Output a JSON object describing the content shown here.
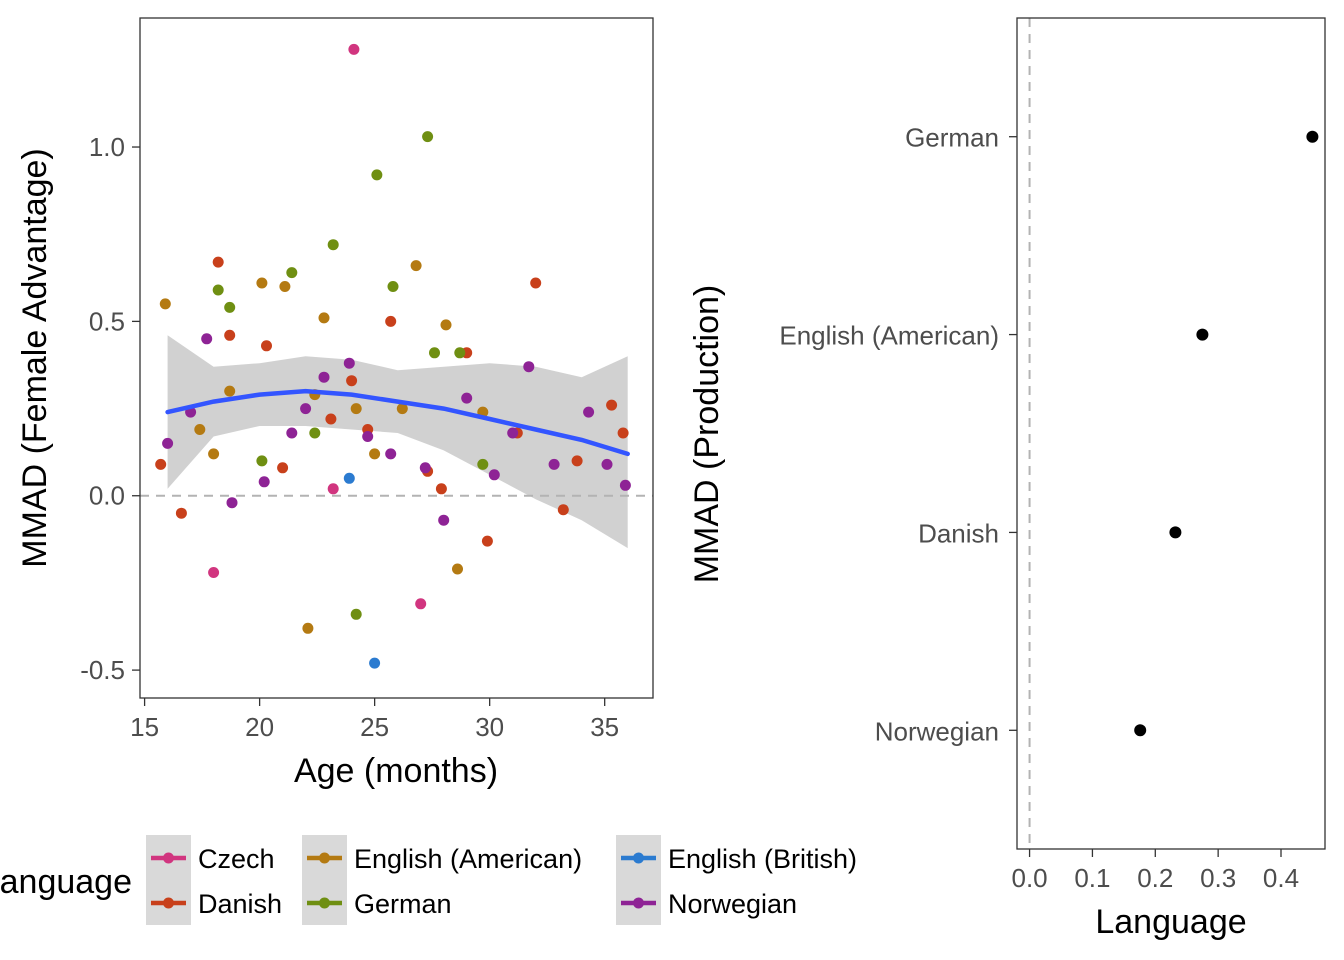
{
  "chart_data": [
    {
      "type": "scatter",
      "xlabel": "Age (months)",
      "ylabel": "MMAD (Female Advantage)",
      "xlim": [
        14.8,
        37.1
      ],
      "ylim": [
        -0.58,
        1.37
      ],
      "x_ticks": [
        15,
        20,
        25,
        30,
        35
      ],
      "y_ticks": [
        -0.5,
        0.0,
        0.5,
        1.0
      ],
      "reference_line": 0,
      "grid": false,
      "colors": {
        "Czech": "#d1357f",
        "Danish": "#c8401b",
        "English (American)": "#b47a12",
        "German": "#6f8f12",
        "English (British)": "#2b7bd0",
        "Norwegian": "#8e2395"
      },
      "series": [
        {
          "name": "Czech",
          "points": [
            [
              24.1,
              1.28
            ],
            [
              27.0,
              -0.31
            ],
            [
              18.0,
              -0.22
            ],
            [
              23.2,
              0.02
            ]
          ]
        },
        {
          "name": "Danish",
          "points": [
            [
              15.7,
              0.09
            ],
            [
              16.6,
              -0.05
            ],
            [
              18.2,
              0.67
            ],
            [
              18.7,
              0.46
            ],
            [
              20.3,
              0.43
            ],
            [
              21.0,
              0.08
            ],
            [
              23.1,
              0.22
            ],
            [
              24.0,
              0.33
            ],
            [
              24.7,
              0.19
            ],
            [
              25.7,
              0.5
            ],
            [
              27.3,
              0.07
            ],
            [
              27.9,
              0.02
            ],
            [
              29.0,
              0.41
            ],
            [
              29.9,
              -0.13
            ],
            [
              31.2,
              0.18
            ],
            [
              32.0,
              0.61
            ],
            [
              33.2,
              -0.04
            ],
            [
              33.8,
              0.1
            ],
            [
              35.3,
              0.26
            ],
            [
              35.8,
              0.18
            ]
          ]
        },
        {
          "name": "English (American)",
          "points": [
            [
              15.9,
              0.55
            ],
            [
              17.4,
              0.19
            ],
            [
              18.0,
              0.12
            ],
            [
              18.7,
              0.3
            ],
            [
              20.1,
              0.61
            ],
            [
              21.1,
              0.6
            ],
            [
              22.1,
              -0.38
            ],
            [
              22.4,
              0.29
            ],
            [
              22.8,
              0.51
            ],
            [
              24.2,
              0.25
            ],
            [
              25.0,
              0.12
            ],
            [
              26.2,
              0.25
            ],
            [
              26.8,
              0.66
            ],
            [
              28.1,
              0.49
            ],
            [
              28.6,
              -0.21
            ],
            [
              29.7,
              0.24
            ]
          ]
        },
        {
          "name": "German",
          "points": [
            [
              18.2,
              0.59
            ],
            [
              18.7,
              0.54
            ],
            [
              20.1,
              0.1
            ],
            [
              21.4,
              0.64
            ],
            [
              22.4,
              0.18
            ],
            [
              23.2,
              0.72
            ],
            [
              24.2,
              -0.34
            ],
            [
              25.1,
              0.92
            ],
            [
              25.8,
              0.6
            ],
            [
              27.3,
              1.03
            ],
            [
              27.6,
              0.41
            ],
            [
              28.7,
              0.41
            ],
            [
              29.7,
              0.09
            ]
          ]
        },
        {
          "name": "English (British)",
          "points": [
            [
              23.9,
              0.05
            ],
            [
              25.0,
              -0.48
            ]
          ]
        },
        {
          "name": "Norwegian",
          "points": [
            [
              16.0,
              0.15
            ],
            [
              17.0,
              0.24
            ],
            [
              17.7,
              0.45
            ],
            [
              18.8,
              -0.02
            ],
            [
              20.2,
              0.04
            ],
            [
              21.4,
              0.18
            ],
            [
              22.0,
              0.25
            ],
            [
              22.8,
              0.34
            ],
            [
              23.9,
              0.38
            ],
            [
              24.7,
              0.17
            ],
            [
              25.7,
              0.12
            ],
            [
              27.2,
              0.08
            ],
            [
              28.0,
              -0.07
            ],
            [
              29.0,
              0.28
            ],
            [
              30.2,
              0.06
            ],
            [
              31.0,
              0.18
            ],
            [
              31.7,
              0.37
            ],
            [
              32.8,
              0.09
            ],
            [
              34.3,
              0.24
            ],
            [
              35.1,
              0.09
            ],
            [
              35.9,
              0.03
            ]
          ]
        }
      ],
      "smooth": {
        "color": "#3355ff",
        "x": [
          16.0,
          18.0,
          20.0,
          22.0,
          24.0,
          26.0,
          28.0,
          30.0,
          32.0,
          34.0,
          36.0
        ],
        "y": [
          0.24,
          0.27,
          0.29,
          0.3,
          0.29,
          0.27,
          0.25,
          0.22,
          0.19,
          0.16,
          0.12
        ],
        "lower": [
          0.02,
          0.17,
          0.2,
          0.2,
          0.19,
          0.18,
          0.13,
          0.06,
          -0.01,
          -0.07,
          -0.15
        ],
        "upper": [
          0.46,
          0.37,
          0.38,
          0.4,
          0.39,
          0.36,
          0.37,
          0.38,
          0.37,
          0.34,
          0.4
        ]
      }
    },
    {
      "type": "scatter",
      "xlabel": "Language",
      "ylabel": "MMAD (Production)",
      "xlim": [
        -0.02,
        0.47
      ],
      "x_ticks": [
        0.0,
        0.1,
        0.2,
        0.3,
        0.4
      ],
      "x_tick_labels": [
        "0.0",
        "0.1",
        "0.2",
        "0.3",
        "0.4"
      ],
      "reference_line": 0,
      "grid": false,
      "categories": [
        "German",
        "English (American)",
        "Danish",
        "Norwegian"
      ],
      "values": [
        0.45,
        0.275,
        0.232,
        0.176
      ]
    }
  ],
  "legend": {
    "title": "Language",
    "entries": [
      "Czech",
      "Danish",
      "English (American)",
      "German",
      "English (British)",
      "Norwegian"
    ],
    "placement": "bottom"
  }
}
